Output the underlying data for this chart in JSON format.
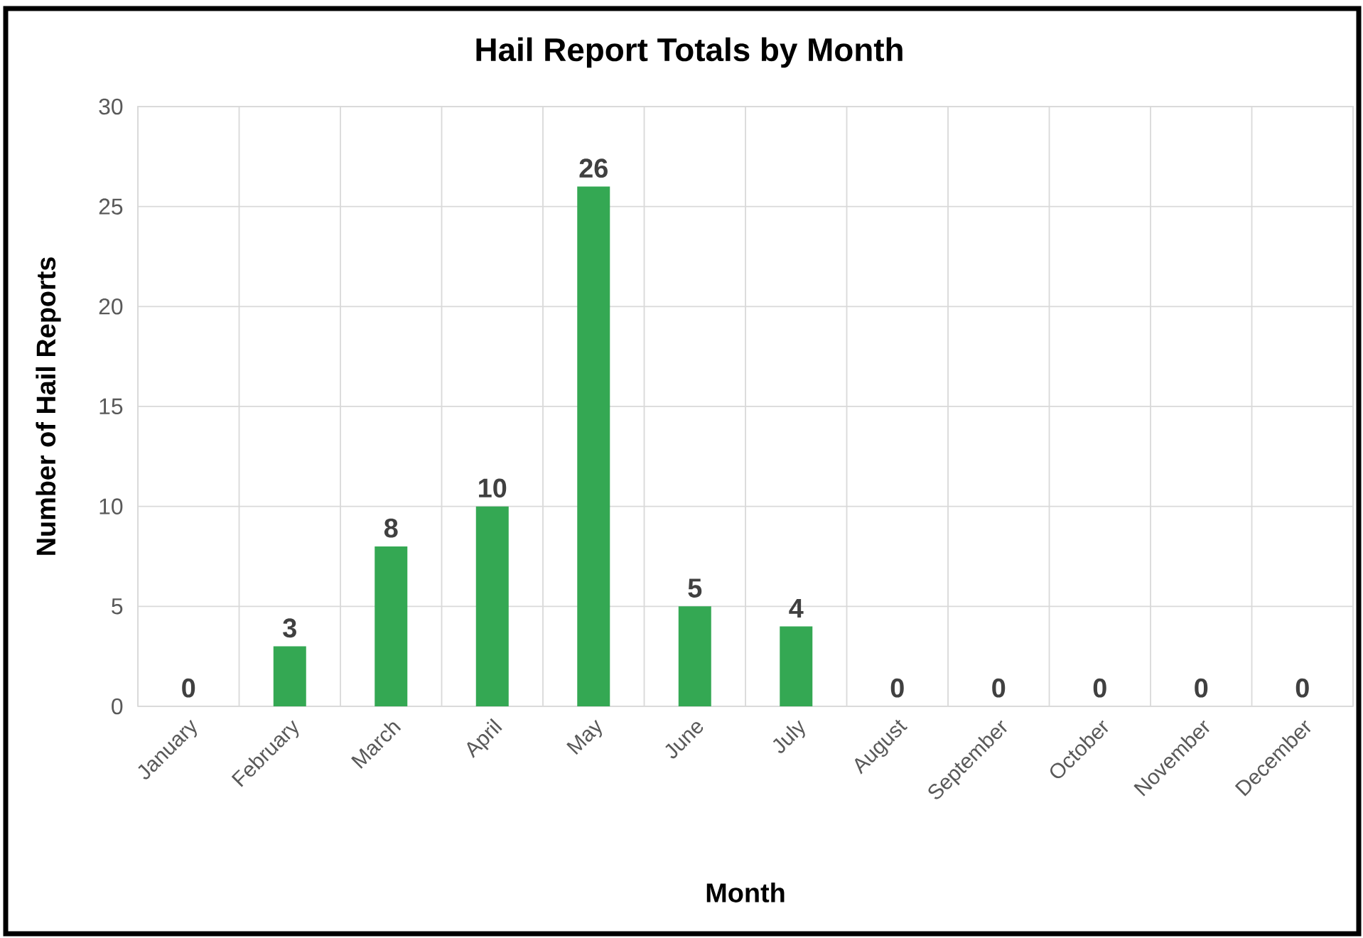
{
  "chart_data": {
    "type": "bar",
    "title": "Hail Report Totals by Month",
    "xlabel": "Month",
    "ylabel": "Number of Hail Reports",
    "categories": [
      "January",
      "February",
      "March",
      "April",
      "May",
      "June",
      "July",
      "August",
      "September",
      "October",
      "November",
      "December"
    ],
    "values": [
      0,
      3,
      8,
      10,
      26,
      5,
      4,
      0,
      0,
      0,
      0,
      0
    ],
    "color": "#34a853",
    "ylim": [
      0,
      30
    ],
    "yticks": [
      0,
      5,
      10,
      15,
      20,
      25,
      30
    ],
    "grid": true,
    "data_labels": true
  }
}
